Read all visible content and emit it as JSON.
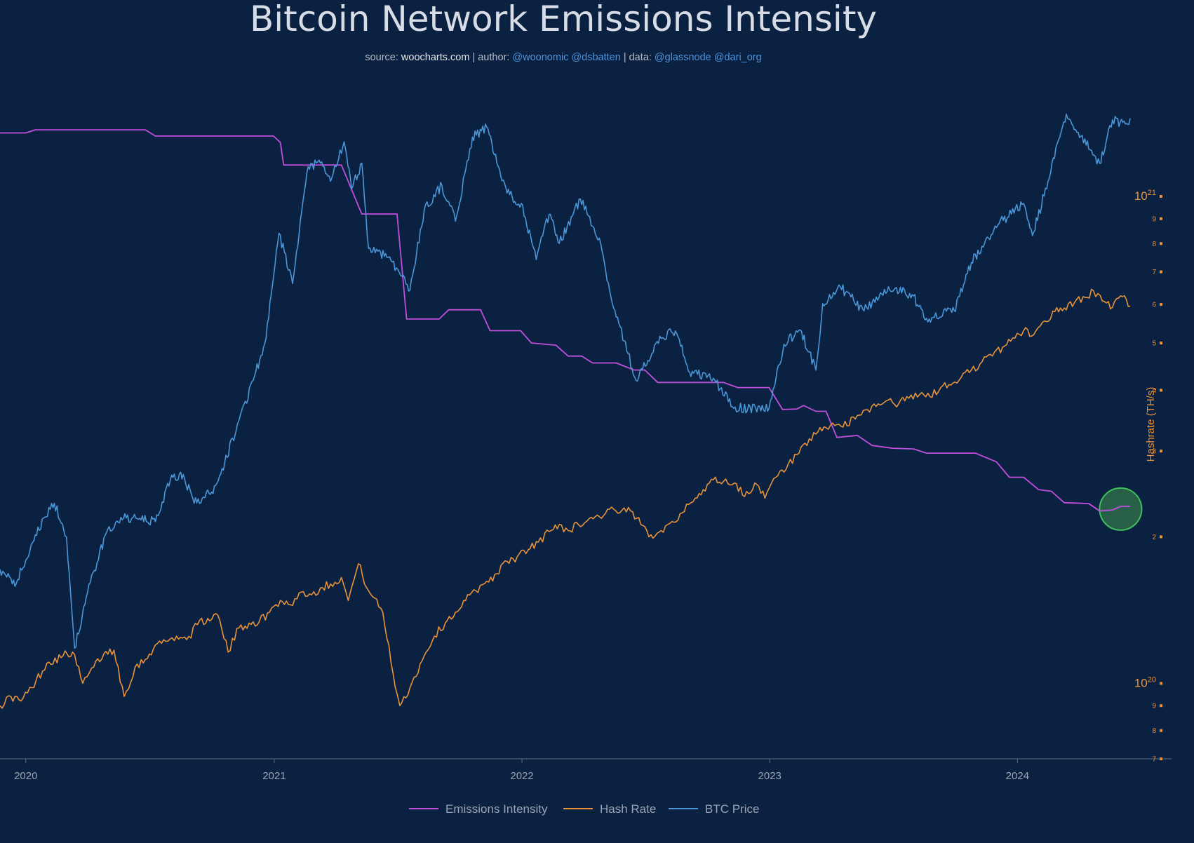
{
  "header": {
    "title": "Bitcoin Network Emissions Intensity",
    "subtitle": {
      "source_label": "source: ",
      "source_value": "woocharts.com",
      "author_label": " | author: ",
      "author_value": "@woonomic @dsbatten",
      "data_label": " | data: ",
      "data_value": "@glassnode @dari_org"
    }
  },
  "colors": {
    "background": "#0b2142",
    "emissions": "#c04fdc",
    "hashrate": "#e8933a",
    "price": "#4a96d6",
    "highlight_fill": "#2d6b48",
    "highlight_stroke": "#3fbf5c"
  },
  "chart_data": {
    "type": "line",
    "title": "Bitcoin Network Emissions Intensity",
    "x_range": [
      "2019-11-24",
      "2024-08-15"
    ],
    "x_ticks": [
      "2020",
      "2021",
      "2022",
      "2023",
      "2024"
    ],
    "y_axis_right": {
      "label": "Hashrate (TH/s)",
      "scale": "log",
      "range": [
        7e+19,
        1.7e+21
      ],
      "major_ticks": [
        {
          "value": 1e+20,
          "base": "10",
          "exp": "20"
        },
        {
          "value": 1e+21,
          "base": "10",
          "exp": "21"
        }
      ],
      "minor_ticks": [
        {
          "value": 7e+19,
          "label": "7"
        },
        {
          "value": 8e+19,
          "label": "8"
        },
        {
          "value": 9e+19,
          "label": "9"
        },
        {
          "value": 2e+20,
          "label": "2"
        },
        {
          "value": 3e+20,
          "label": "3"
        },
        {
          "value": 4e+20,
          "label": "4"
        },
        {
          "value": 5e+20,
          "label": "5"
        },
        {
          "value": 6e+20,
          "label": "6"
        },
        {
          "value": 7e+20,
          "label": "7"
        },
        {
          "value": 8e+20,
          "label": "8"
        },
        {
          "value": 9e+20,
          "label": "9"
        },
        {
          "value": 2e+21,
          "label": "2"
        },
        {
          "value": 3e+21,
          "label": "3"
        },
        {
          "value": 4e+21,
          "label": "4"
        },
        {
          "value": 5e+21,
          "label": "5"
        },
        {
          "value": 6e+21,
          "label": "6"
        }
      ]
    },
    "series": [
      {
        "name": "Emissions Intensity",
        "key": "emissions",
        "points": [
          [
            "2019-11-24",
            1.35e+21
          ],
          [
            "2020-01-01",
            1.35e+21
          ],
          [
            "2020-01-15",
            1.37e+21
          ],
          [
            "2020-06-25",
            1.37e+21
          ],
          [
            "2020-07-10",
            1.33e+21
          ],
          [
            "2020-12-31",
            1.33e+21
          ],
          [
            "2021-01-10",
            1.29e+21
          ],
          [
            "2021-01-15",
            1.16e+21
          ],
          [
            "2021-04-10",
            1.16e+21
          ],
          [
            "2021-05-10",
            9.2e+20
          ],
          [
            "2021-07-01",
            9.2e+20
          ],
          [
            "2021-07-15",
            5.6e+20
          ],
          [
            "2021-09-01",
            5.6e+20
          ],
          [
            "2021-09-15",
            5.85e+20
          ],
          [
            "2021-11-01",
            5.85e+20
          ],
          [
            "2021-11-15",
            5.3e+20
          ],
          [
            "2021-12-30",
            5.3e+20
          ],
          [
            "2022-01-15",
            5e+20
          ],
          [
            "2022-02-20",
            4.95e+20
          ],
          [
            "2022-03-10",
            4.7e+20
          ],
          [
            "2022-03-30",
            4.7e+20
          ],
          [
            "2022-04-15",
            4.55e+20
          ],
          [
            "2022-05-20",
            4.55e+20
          ],
          [
            "2022-06-15",
            4.4e+20
          ],
          [
            "2022-07-01",
            4.4e+20
          ],
          [
            "2022-07-20",
            4.15e+20
          ],
          [
            "2022-10-25",
            4.15e+20
          ],
          [
            "2022-11-15",
            4.05e+20
          ],
          [
            "2022-12-31",
            4.05e+20
          ],
          [
            "2023-01-20",
            3.65e+20
          ],
          [
            "2023-02-10",
            3.66e+20
          ],
          [
            "2023-02-20",
            3.72e+20
          ],
          [
            "2023-03-10",
            3.62e+20
          ],
          [
            "2023-03-25",
            3.62e+20
          ],
          [
            "2023-04-10",
            3.2e+20
          ],
          [
            "2023-05-10",
            3.23e+20
          ],
          [
            "2023-06-01",
            3.08e+20
          ],
          [
            "2023-07-01",
            3.04e+20
          ],
          [
            "2023-08-01",
            3.03e+20
          ],
          [
            "2023-08-20",
            2.97e+20
          ],
          [
            "2023-10-31",
            2.97e+20
          ],
          [
            "2023-12-01",
            2.85e+20
          ],
          [
            "2023-12-20",
            2.65e+20
          ],
          [
            "2024-01-10",
            2.65e+20
          ],
          [
            "2024-02-01",
            2.5e+20
          ],
          [
            "2024-02-20",
            2.48e+20
          ],
          [
            "2024-03-10",
            2.35e+20
          ],
          [
            "2024-04-15",
            2.34e+20
          ],
          [
            "2024-05-01",
            2.26e+20
          ],
          [
            "2024-05-20",
            2.27e+20
          ],
          [
            "2024-06-01",
            2.31e+20
          ],
          [
            "2024-06-15",
            2.31e+20
          ]
        ]
      },
      {
        "name": "Hash Rate",
        "key": "hashrate",
        "points": [
          [
            "2019-11-24",
            9e+19
          ],
          [
            "2019-12-10",
            9.4e+19
          ],
          [
            "2019-12-25",
            9.2e+19
          ],
          [
            "2020-01-10",
            9.8e+19
          ],
          [
            "2020-02-01",
            1.1e+20
          ],
          [
            "2020-02-25",
            1.14e+20
          ],
          [
            "2020-03-10",
            1.16e+20
          ],
          [
            "2020-03-25",
            1e+20
          ],
          [
            "2020-04-10",
            1.08e+20
          ],
          [
            "2020-04-25",
            1.15e+20
          ],
          [
            "2020-05-10",
            1.17e+20
          ],
          [
            "2020-05-25",
            9.4e+19
          ],
          [
            "2020-06-10",
            1.08e+20
          ],
          [
            "2020-06-25",
            1.12e+20
          ],
          [
            "2020-07-10",
            1.2e+20
          ],
          [
            "2020-07-25",
            1.22e+20
          ],
          [
            "2020-08-10",
            1.25e+20
          ],
          [
            "2020-08-25",
            1.23e+20
          ],
          [
            "2020-09-10",
            1.32e+20
          ],
          [
            "2020-09-25",
            1.36e+20
          ],
          [
            "2020-10-10",
            1.38e+20
          ],
          [
            "2020-10-25",
            1.16e+20
          ],
          [
            "2020-11-10",
            1.3e+20
          ],
          [
            "2020-11-25",
            1.33e+20
          ],
          [
            "2020-12-10",
            1.34e+20
          ],
          [
            "2020-12-25",
            1.4e+20
          ],
          [
            "2021-01-10",
            1.48e+20
          ],
          [
            "2021-01-25",
            1.45e+20
          ],
          [
            "2021-02-10",
            1.54e+20
          ],
          [
            "2021-02-25",
            1.52e+20
          ],
          [
            "2021-03-10",
            1.57e+20
          ],
          [
            "2021-03-25",
            1.6e+20
          ],
          [
            "2021-04-10",
            1.65e+20
          ],
          [
            "2021-04-20",
            1.48e+20
          ],
          [
            "2021-05-05",
            1.76e+20
          ],
          [
            "2021-05-20",
            1.55e+20
          ],
          [
            "2021-06-10",
            1.4e+20
          ],
          [
            "2021-06-25",
            1.05e+20
          ],
          [
            "2021-07-05",
            9e+19
          ],
          [
            "2021-07-20",
            9.8e+19
          ],
          [
            "2021-08-10",
            1.14e+20
          ],
          [
            "2021-08-25",
            1.25e+20
          ],
          [
            "2021-09-10",
            1.33e+20
          ],
          [
            "2021-09-25",
            1.4e+20
          ],
          [
            "2021-10-10",
            1.48e+20
          ],
          [
            "2021-10-25",
            1.55e+20
          ],
          [
            "2021-11-10",
            1.62e+20
          ],
          [
            "2021-11-25",
            1.68e+20
          ],
          [
            "2021-12-10",
            1.78e+20
          ],
          [
            "2021-12-25",
            1.82e+20
          ],
          [
            "2022-01-10",
            1.88e+20
          ],
          [
            "2022-01-25",
            1.95e+20
          ],
          [
            "2022-02-10",
            2.05e+20
          ],
          [
            "2022-02-25",
            2.12e+20
          ],
          [
            "2022-03-10",
            2.06e+20
          ],
          [
            "2022-03-25",
            2.12e+20
          ],
          [
            "2022-04-10",
            2.18e+20
          ],
          [
            "2022-04-25",
            2.2e+20
          ],
          [
            "2022-05-10",
            2.28e+20
          ],
          [
            "2022-05-25",
            2.24e+20
          ],
          [
            "2022-06-10",
            2.26e+20
          ],
          [
            "2022-06-25",
            2.12e+20
          ],
          [
            "2022-07-10",
            2.02e+20
          ],
          [
            "2022-07-25",
            2.06e+20
          ],
          [
            "2022-08-10",
            2.15e+20
          ],
          [
            "2022-08-25",
            2.24e+20
          ],
          [
            "2022-09-10",
            2.36e+20
          ],
          [
            "2022-09-25",
            2.5e+20
          ],
          [
            "2022-10-10",
            2.62e+20
          ],
          [
            "2022-10-25",
            2.6e+20
          ],
          [
            "2022-11-10",
            2.58e+20
          ],
          [
            "2022-11-25",
            2.42e+20
          ],
          [
            "2022-12-10",
            2.58e+20
          ],
          [
            "2022-12-25",
            2.4e+20
          ],
          [
            "2023-01-10",
            2.65e+20
          ],
          [
            "2023-01-25",
            2.75e+20
          ],
          [
            "2023-02-10",
            2.95e+20
          ],
          [
            "2023-02-25",
            3.08e+20
          ],
          [
            "2023-03-10",
            3.25e+20
          ],
          [
            "2023-03-25",
            3.35e+20
          ],
          [
            "2023-04-10",
            3.4e+20
          ],
          [
            "2023-04-25",
            3.38e+20
          ],
          [
            "2023-05-10",
            3.55e+20
          ],
          [
            "2023-05-25",
            3.65e+20
          ],
          [
            "2023-06-10",
            3.75e+20
          ],
          [
            "2023-06-25",
            3.82e+20
          ],
          [
            "2023-07-10",
            3.75e+20
          ],
          [
            "2023-07-25",
            3.85e+20
          ],
          [
            "2023-08-10",
            3.92e+20
          ],
          [
            "2023-08-25",
            3.88e+20
          ],
          [
            "2023-09-10",
            4.05e+20
          ],
          [
            "2023-09-25",
            4.1e+20
          ],
          [
            "2023-10-10",
            4.25e+20
          ],
          [
            "2023-10-25",
            4.4e+20
          ],
          [
            "2023-11-10",
            4.58e+20
          ],
          [
            "2023-11-25",
            4.7e+20
          ],
          [
            "2023-12-10",
            4.9e+20
          ],
          [
            "2023-12-25",
            5.12e+20
          ],
          [
            "2024-01-10",
            5.3e+20
          ],
          [
            "2024-01-25",
            5.2e+20
          ],
          [
            "2024-02-10",
            5.55e+20
          ],
          [
            "2024-02-25",
            5.8e+20
          ],
          [
            "2024-03-10",
            5.9e+20
          ],
          [
            "2024-03-25",
            6.05e+20
          ],
          [
            "2024-04-10",
            6.2e+20
          ],
          [
            "2024-04-22",
            6.4e+20
          ],
          [
            "2024-05-05",
            6.1e+20
          ],
          [
            "2024-05-20",
            5.92e+20
          ],
          [
            "2024-06-01",
            6.25e+20
          ],
          [
            "2024-06-15",
            5.95e+20
          ]
        ]
      },
      {
        "name": "BTC Price",
        "key": "price",
        "axis": "hidden",
        "points": [
          [
            "2019-11-24",
            7300
          ],
          [
            "2019-12-18",
            6800
          ],
          [
            "2020-01-15",
            8700
          ],
          [
            "2020-02-12",
            10200
          ],
          [
            "2020-03-01",
            8600
          ],
          [
            "2020-03-13",
            4900
          ],
          [
            "2020-04-01",
            6500
          ],
          [
            "2020-04-29",
            8800
          ],
          [
            "2020-05-20",
            9500
          ],
          [
            "2020-06-15",
            9400
          ],
          [
            "2020-07-10",
            9300
          ],
          [
            "2020-08-01",
            11500
          ],
          [
            "2020-08-20",
            11800
          ],
          [
            "2020-09-05",
            10200
          ],
          [
            "2020-10-01",
            10800
          ],
          [
            "2020-10-20",
            12500
          ],
          [
            "2020-11-10",
            15500
          ],
          [
            "2020-12-01",
            19000
          ],
          [
            "2020-12-20",
            23500
          ],
          [
            "2021-01-08",
            40000
          ],
          [
            "2021-01-28",
            31000
          ],
          [
            "2021-02-20",
            56000
          ],
          [
            "2021-03-10",
            57000
          ],
          [
            "2021-03-25",
            52000
          ],
          [
            "2021-04-14",
            63500
          ],
          [
            "2021-04-25",
            50000
          ],
          [
            "2021-05-10",
            57000
          ],
          [
            "2021-05-20",
            37000
          ],
          [
            "2021-06-20",
            35500
          ],
          [
            "2021-07-20",
            30000
          ],
          [
            "2021-08-10",
            45000
          ],
          [
            "2021-09-05",
            51000
          ],
          [
            "2021-09-25",
            42500
          ],
          [
            "2021-10-20",
            65000
          ],
          [
            "2021-11-10",
            68500
          ],
          [
            "2021-11-25",
            57000
          ],
          [
            "2021-12-10",
            49000
          ],
          [
            "2021-12-31",
            46500
          ],
          [
            "2022-01-22",
            35000
          ],
          [
            "2022-02-10",
            44000
          ],
          [
            "2022-02-25",
            38000
          ],
          [
            "2022-03-28",
            47500
          ],
          [
            "2022-04-25",
            39000
          ],
          [
            "2022-05-12",
            29000
          ],
          [
            "2022-06-18",
            19000
          ],
          [
            "2022-07-25",
            23500
          ],
          [
            "2022-08-15",
            24400
          ],
          [
            "2022-09-05",
            19800
          ],
          [
            "2022-10-10",
            19200
          ],
          [
            "2022-11-09",
            16500
          ],
          [
            "2022-12-31",
            16500
          ],
          [
            "2023-01-22",
            22800
          ],
          [
            "2023-02-15",
            24500
          ],
          [
            "2023-03-10",
            20000
          ],
          [
            "2023-03-20",
            28000
          ],
          [
            "2023-04-15",
            30500
          ],
          [
            "2023-05-20",
            27000
          ],
          [
            "2023-06-25",
            30500
          ],
          [
            "2023-07-30",
            29300
          ],
          [
            "2023-08-20",
            26000
          ],
          [
            "2023-09-30",
            27000
          ],
          [
            "2023-10-25",
            34500
          ],
          [
            "2023-12-05",
            42000
          ],
          [
            "2024-01-10",
            46500
          ],
          [
            "2024-01-23",
            39500
          ],
          [
            "2024-02-15",
            52000
          ],
          [
            "2024-03-13",
            73000
          ],
          [
            "2024-04-17",
            61000
          ],
          [
            "2024-05-01",
            57000
          ],
          [
            "2024-05-20",
            71000
          ],
          [
            "2024-06-08",
            69500
          ],
          [
            "2024-06-15",
            71500
          ]
        ]
      }
    ],
    "highlight": {
      "date": "2024-06-01",
      "value": 2.28e+20
    },
    "legend": {
      "position": "bottom-center",
      "items": [
        {
          "key": "emissions",
          "label": "Emissions Intensity"
        },
        {
          "key": "hashrate",
          "label": "Hash Rate"
        },
        {
          "key": "price",
          "label": "BTC Price"
        }
      ]
    }
  }
}
